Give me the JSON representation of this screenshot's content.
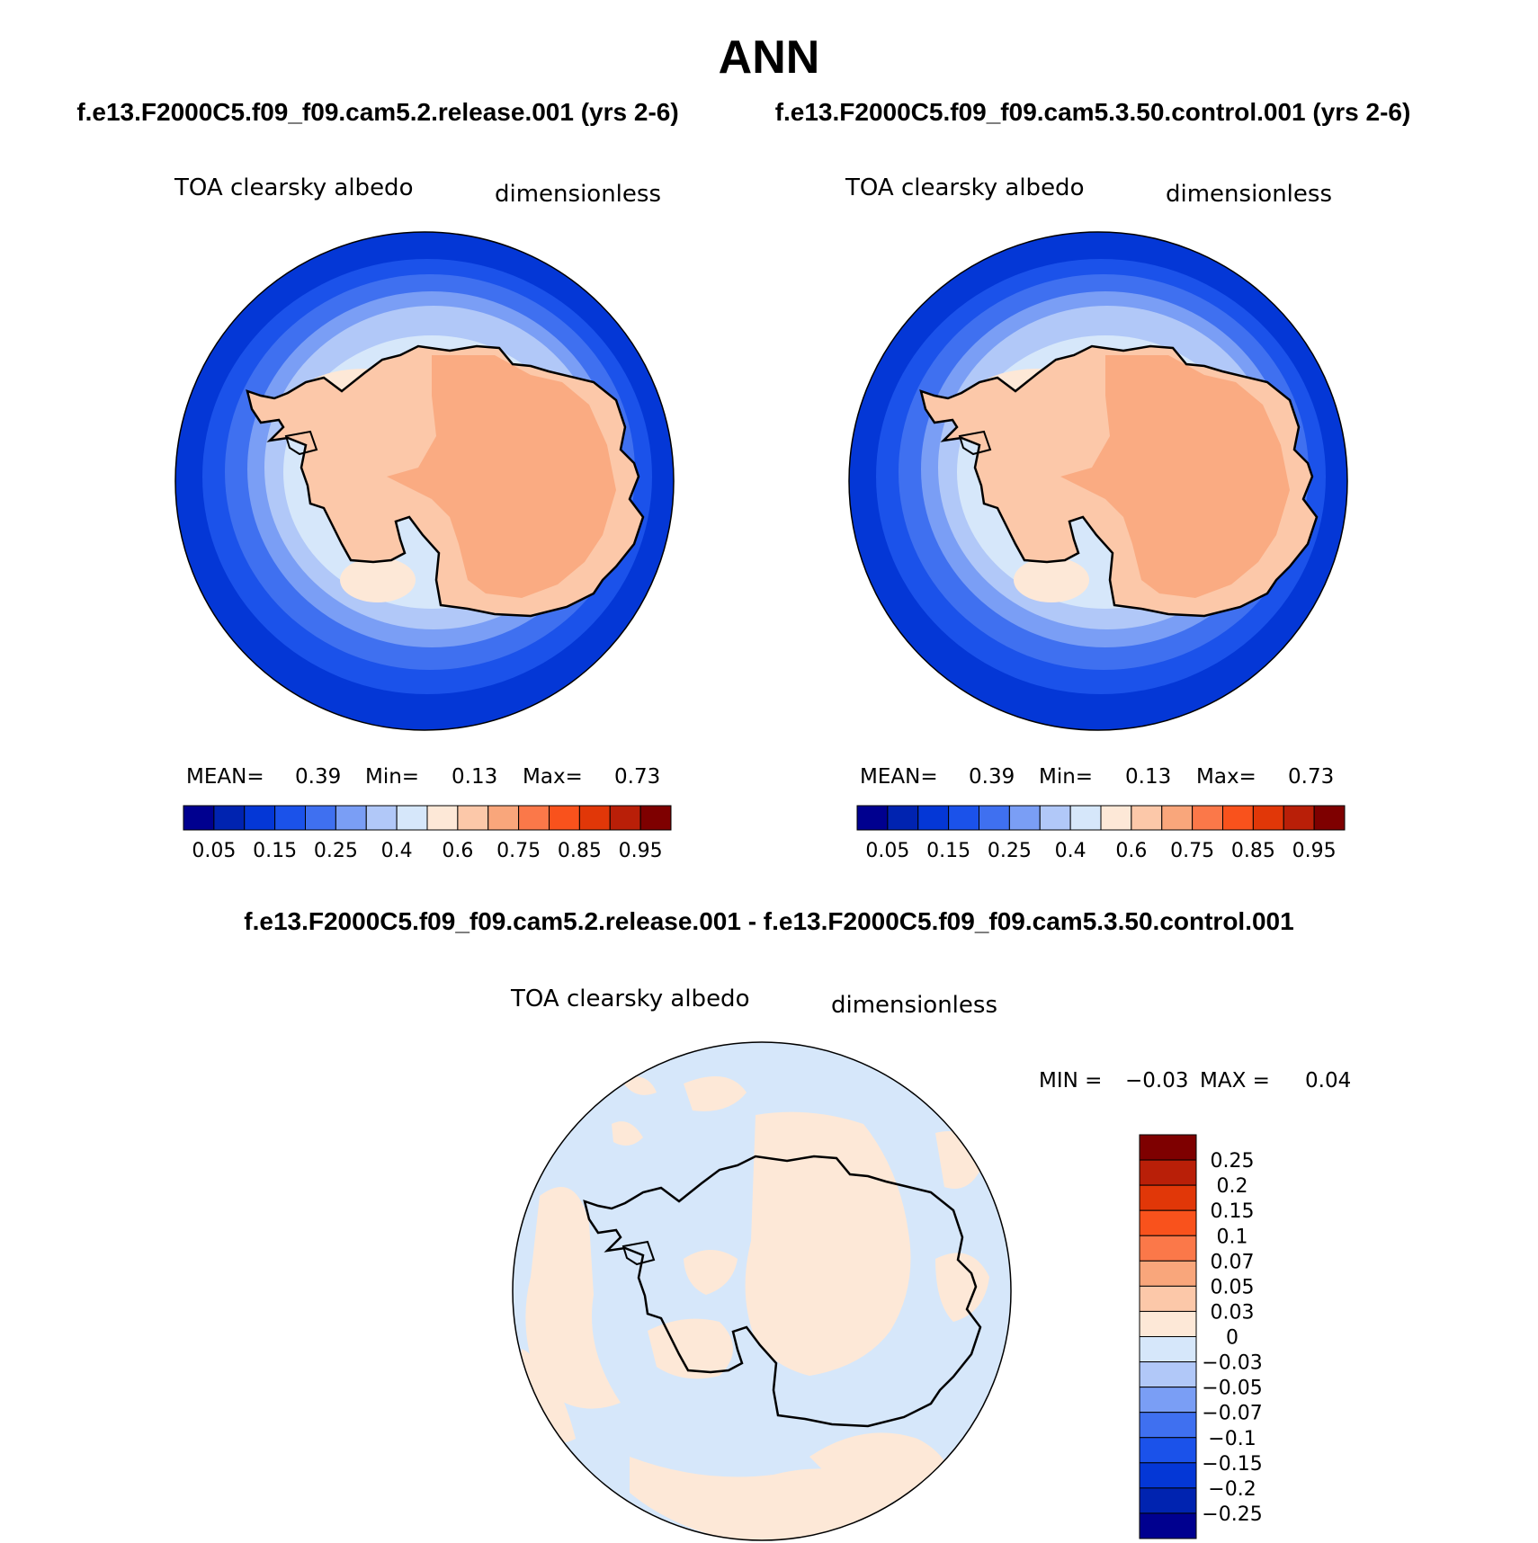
{
  "page": {
    "title": "ANN",
    "top_left_case": "f.e13.F2000C5.f09_f09.cam5.2.release.001 (yrs 2-6)",
    "top_right_case": "f.e13.F2000C5.f09_f09.cam5.3.50.control.001 (yrs 2-6)",
    "diff_title": "f.e13.F2000C5.f09_f09.cam5.2.release.001 - f.e13.F2000C5.f09_f09.cam5.3.50.control.001"
  },
  "panels": [
    {
      "variable": "TOA clearsky albedo",
      "units": "dimensionless",
      "stats": {
        "mean_label": "MEAN=",
        "mean": "0.39",
        "min_label": "Min=",
        "min": "0.13",
        "max_label": "Max=",
        "max": "0.73"
      }
    },
    {
      "variable": "TOA clearsky albedo",
      "units": "dimensionless",
      "stats": {
        "mean_label": "MEAN=",
        "mean": "0.39",
        "min_label": "Min=",
        "min": "0.13",
        "max_label": "Max=",
        "max": "0.73"
      }
    }
  ],
  "colorbar": {
    "colors": [
      "#00008f",
      "#0023b0",
      "#0437d6",
      "#1b52ea",
      "#3f70f0",
      "#7a9ef5",
      "#b1c8f8",
      "#d6e7fa",
      "#fde8d7",
      "#fcc8a9",
      "#f9a67b",
      "#fb7849",
      "#f9521c",
      "#e13708",
      "#b91f08",
      "#7e0000"
    ],
    "labels": [
      "0.05",
      "0.15",
      "0.25",
      "0.4",
      "0.6",
      "0.75",
      "0.85",
      "0.95"
    ]
  },
  "diff_panel": {
    "variable": "TOA clearsky albedo",
    "units": "dimensionless",
    "min_label": "MIN =",
    "min": "−0.03",
    "max_label": "MAX =",
    "max": "0.04",
    "colors": [
      "#7e0000",
      "#b91f08",
      "#e13708",
      "#f9521c",
      "#fb7849",
      "#f9a67b",
      "#fcc8a9",
      "#fde8d7",
      "#d6e7fa",
      "#b1c8f8",
      "#7a9ef5",
      "#3f70f0",
      "#1b52ea",
      "#0437d6",
      "#0023b0",
      "#00008f"
    ],
    "labels": [
      "0.25",
      "0.2",
      "0.15",
      "0.1",
      "0.07",
      "0.05",
      "0.03",
      "0",
      "−0.03",
      "−0.05",
      "−0.07",
      "−0.1",
      "−0.15",
      "−0.2",
      "−0.25"
    ]
  }
}
